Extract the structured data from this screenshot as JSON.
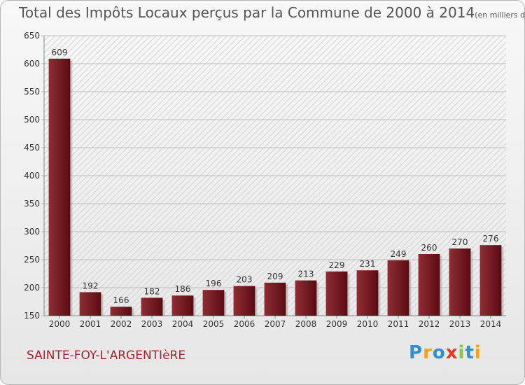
{
  "title": "Total des Impôts Locaux perçus par la Commune de 2000 à 2014",
  "title_unit": "(en milliers d'€)",
  "commune": "SAINTE-FOY-L'ARGENTIèRE",
  "logo": {
    "text": "Proxiti",
    "letters": [
      {
        "ch": "P",
        "color": "#2f8fd6"
      },
      {
        "ch": "r",
        "color": "#f2a312"
      },
      {
        "ch": "o",
        "color": "#2f8fd6"
      },
      {
        "ch": "x",
        "color": "#e53a2b"
      },
      {
        "ch": "i",
        "color": "#8cc63f"
      },
      {
        "ch": "t",
        "color": "#2f8fd6"
      },
      {
        "ch": "i",
        "color": "#f2a312"
      }
    ]
  },
  "colors": {
    "bar_top": "#8e2d35",
    "bar_bottom": "#5c0a12",
    "text": "#333333",
    "grid": "#c8c8c8"
  },
  "chart_data": {
    "type": "bar",
    "categories": [
      "2000",
      "2001",
      "2002",
      "2003",
      "2004",
      "2005",
      "2006",
      "2007",
      "2008",
      "2009",
      "2010",
      "2011",
      "2012",
      "2013",
      "2014"
    ],
    "values": [
      609,
      192,
      166,
      182,
      186,
      196,
      203,
      209,
      213,
      229,
      231,
      249,
      260,
      270,
      276
    ],
    "ylim": [
      150,
      650
    ],
    "yticks": [
      150,
      200,
      250,
      300,
      350,
      400,
      450,
      500,
      550,
      600,
      650
    ],
    "grid": true,
    "xlabel": "",
    "ylabel": ""
  }
}
